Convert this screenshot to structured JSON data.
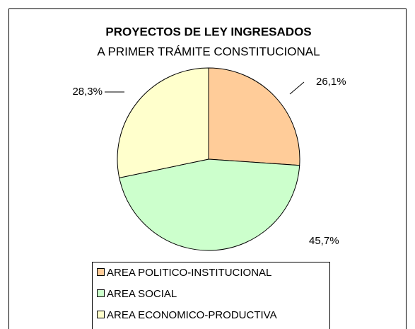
{
  "chart_data": {
    "type": "pie",
    "title": "PROYECTOS DE LEY INGRESADOS",
    "subtitle": "A PRIMER TRÁMITE CONSTITUCIONAL",
    "categories": [
      "AREA POLITICO-INSTITUCIONAL",
      "AREA SOCIAL",
      "AREA ECONOMICO-PRODUCTIVA"
    ],
    "values": [
      26.1,
      45.7,
      28.3
    ],
    "value_labels": [
      "26,1%",
      "45,7%",
      "28,3%"
    ],
    "colors": [
      "#FFCC99",
      "#CCFFCC",
      "#FFFFCC"
    ],
    "legend": "bottom"
  }
}
